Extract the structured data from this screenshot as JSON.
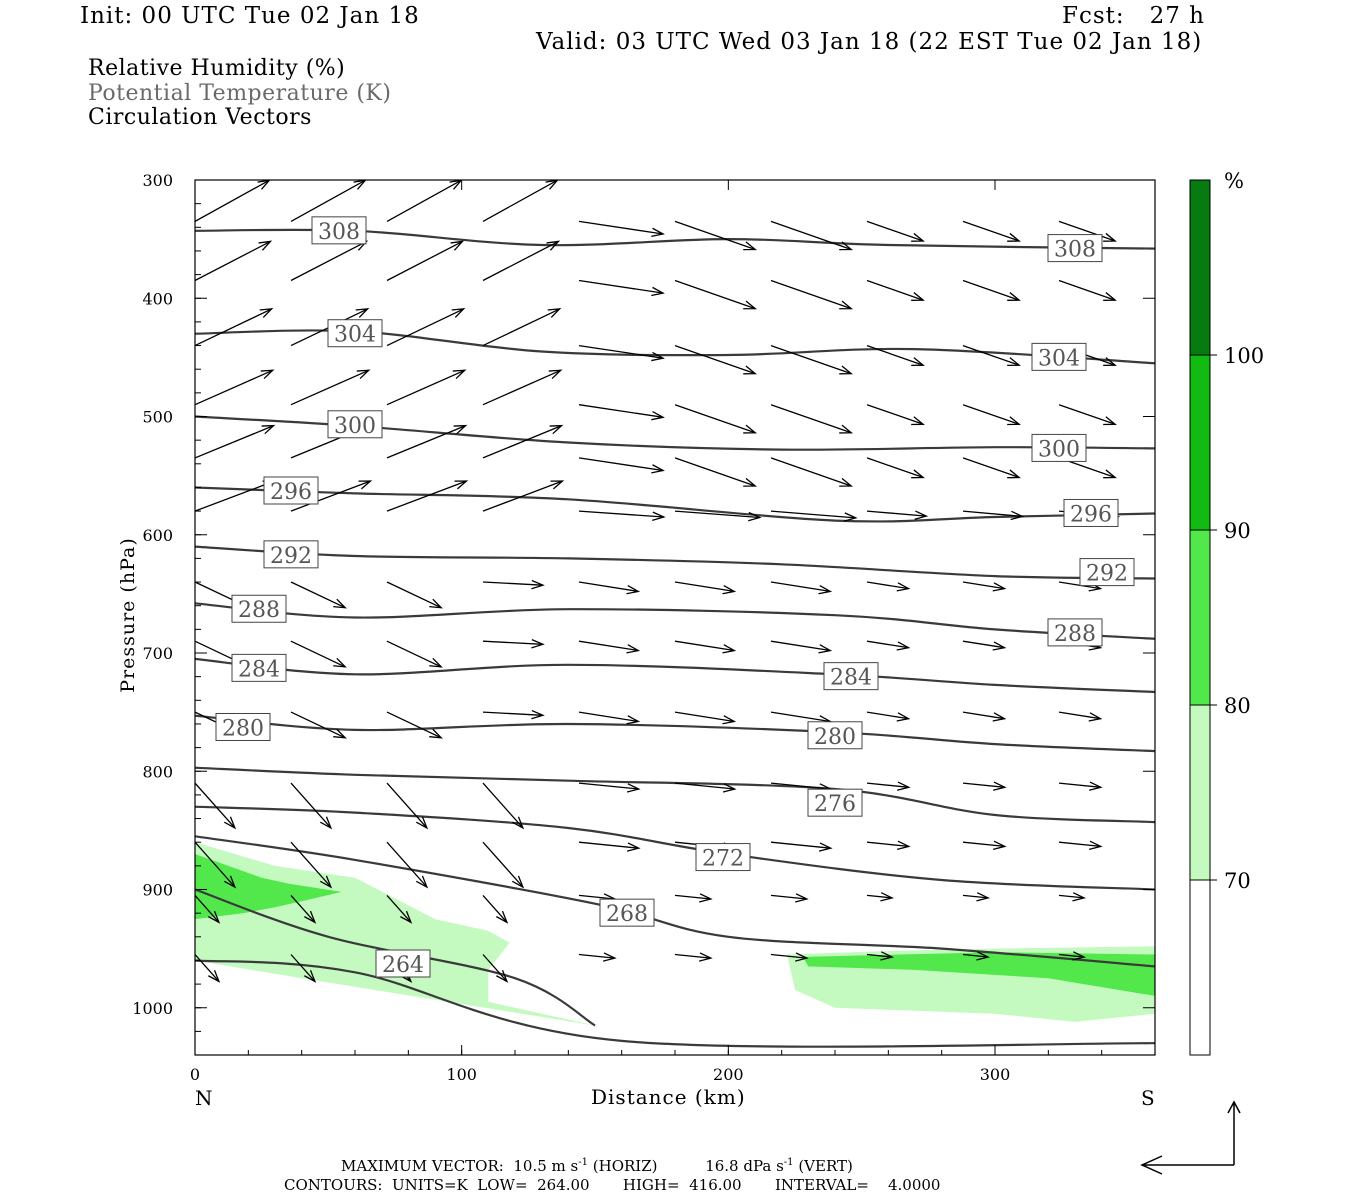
{
  "header": {
    "init": "Init: 00 UTC Tue 02 Jan 18",
    "fcst": "Fcst:   27 h",
    "valid": "Valid: 03 UTC Wed 03 Jan 18 (22 EST Tue 02 Jan 18)"
  },
  "legend": {
    "line1": "Relative Humidity (%)",
    "line2": "Potential Temperature (K)",
    "line3": "Circulation Vectors"
  },
  "colors": {
    "contour": "#3a3a3a",
    "pt_text": "#555555",
    "rh70": "#c4fac0",
    "rh80": "#52e84c",
    "rh90": "#11bb11",
    "rh100": "#087a12"
  },
  "chart_data": {
    "type": "contour",
    "xlabel": "Distance (km)",
    "ylabel": "Pressure (hPa)",
    "xlim": [
      0,
      360
    ],
    "ylim": [
      300,
      1030
    ],
    "y_scale": "linear-inverted",
    "x_ticks": [
      "0",
      "100",
      "200",
      "300"
    ],
    "y_ticks": [
      "300",
      "400",
      "500",
      "600",
      "700",
      "800",
      "900",
      "1000"
    ],
    "x_end_labels": {
      "left": "N",
      "right": "S"
    },
    "colorbar": {
      "unit": "%",
      "levels": [
        "70",
        "80",
        "90",
        "100"
      ]
    },
    "theta_contours": [
      {
        "label": "308",
        "x": [
          0,
          60,
          130,
          200,
          260,
          360
        ],
        "p": [
          343,
          343,
          355,
          350,
          355,
          358
        ],
        "label_at": [
          [
            54,
            343
          ],
          [
            330,
            358
          ]
        ]
      },
      {
        "label": "304",
        "x": [
          0,
          60,
          130,
          200,
          270,
          360
        ],
        "p": [
          430,
          428,
          445,
          448,
          443,
          455
        ],
        "label_at": [
          [
            60,
            430
          ],
          [
            324,
            450
          ]
        ]
      },
      {
        "label": "300",
        "x": [
          0,
          60,
          140,
          220,
          300,
          360
        ],
        "p": [
          500,
          508,
          522,
          528,
          526,
          527
        ],
        "label_at": [
          [
            60,
            507
          ],
          [
            324,
            527
          ]
        ]
      },
      {
        "label": "296",
        "x": [
          0,
          60,
          140,
          240,
          300,
          360
        ],
        "p": [
          560,
          565,
          570,
          588,
          585,
          582
        ],
        "label_at": [
          [
            36,
            563
          ],
          [
            336,
            582
          ]
        ]
      },
      {
        "label": "292",
        "x": [
          0,
          60,
          140,
          220,
          300,
          360
        ],
        "p": [
          610,
          618,
          620,
          625,
          635,
          637
        ],
        "label_at": [
          [
            36,
            617
          ],
          [
            342,
            632
          ]
        ]
      },
      {
        "label": "288",
        "x": [
          0,
          60,
          140,
          240,
          300,
          360
        ],
        "p": [
          658,
          670,
          663,
          668,
          680,
          688
        ],
        "label_at": [
          [
            24,
            663
          ],
          [
            330,
            683
          ]
        ]
      },
      {
        "label": "284",
        "x": [
          0,
          60,
          140,
          240,
          300,
          360
        ],
        "p": [
          705,
          718,
          710,
          718,
          727,
          733
        ],
        "label_at": [
          [
            24,
            713
          ],
          [
            246,
            720
          ]
        ]
      },
      {
        "label": "280",
        "x": [
          0,
          60,
          140,
          240,
          300,
          360
        ],
        "p": [
          753,
          765,
          760,
          767,
          777,
          783
        ],
        "label_at": [
          [
            18,
            763
          ],
          [
            240,
            770
          ]
        ]
      },
      {
        "label": "276",
        "x": [
          0,
          60,
          140,
          240,
          300,
          360
        ],
        "p": [
          797,
          803,
          808,
          815,
          837,
          843
        ],
        "label_at": [
          [
            240,
            827
          ]
        ]
      },
      {
        "label": "272",
        "x": [
          0,
          60,
          140,
          200,
          280,
          360
        ],
        "p": [
          830,
          835,
          848,
          870,
          892,
          900
        ],
        "label_at": [
          [
            198,
            873
          ]
        ]
      },
      {
        "label": "268",
        "x": [
          0,
          60,
          150,
          200,
          280,
          360
        ],
        "p": [
          855,
          875,
          912,
          940,
          950,
          965
        ],
        "label_at": [
          [
            162,
            920
          ]
        ]
      },
      {
        "label": "264",
        "x": [
          0,
          50,
          120,
          150
        ],
        "p": [
          900,
          940,
          975,
          1015
        ],
        "label_at": [
          [
            78,
            963
          ]
        ]
      },
      {
        "label": "",
        "x": [
          0,
          60,
          160,
          360
        ],
        "p": [
          960,
          970,
          1028,
          1030
        ]
      }
    ],
    "rh_shading": [
      {
        "level": "70-80",
        "polygon": [
          [
            0,
            860
          ],
          [
            30,
            880
          ],
          [
            60,
            890
          ],
          [
            90,
            925
          ],
          [
            110,
            935
          ],
          [
            118,
            945
          ],
          [
            110,
            968
          ],
          [
            110,
            995
          ],
          [
            150,
            1015
          ],
          [
            40,
            975
          ],
          [
            0,
            960
          ]
        ]
      },
      {
        "level": "80-90",
        "polygon": [
          [
            0,
            870
          ],
          [
            25,
            890
          ],
          [
            35,
            895
          ],
          [
            55,
            902
          ],
          [
            40,
            910
          ],
          [
            30,
            915
          ],
          [
            18,
            920
          ],
          [
            0,
            925
          ]
        ]
      },
      {
        "level": "70-80",
        "polygon": [
          [
            222,
            955
          ],
          [
            260,
            952
          ],
          [
            300,
            950
          ],
          [
            360,
            948
          ],
          [
            360,
            1005
          ],
          [
            330,
            1012
          ],
          [
            300,
            1005
          ],
          [
            240,
            1000
          ],
          [
            225,
            985
          ]
        ]
      },
      {
        "level": "80-90",
        "polygon": [
          [
            228,
            957
          ],
          [
            300,
            953
          ],
          [
            360,
            955
          ],
          [
            360,
            990
          ],
          [
            320,
            975
          ],
          [
            270,
            968
          ],
          [
            230,
            965
          ]
        ]
      }
    ],
    "max_vector": {
      "horiz": "10.5 m s-1 (HORIZ)",
      "vert": "16.8 dPa s-1 (VERT)"
    }
  },
  "footer": {
    "max_vector_label": "MAXIMUM VECTOR:",
    "horiz_value": "10.5 m s",
    "horiz_exp": "-1",
    "horiz_unit": " (HORIZ)",
    "vert_value": "16.8 dPa s",
    "vert_exp": "-1",
    "vert_unit": " (VERT)",
    "contours": "CONTOURS:  UNITS=K  LOW=  264.00       HIGH=  416.00       INTERVAL=    4.0000"
  }
}
